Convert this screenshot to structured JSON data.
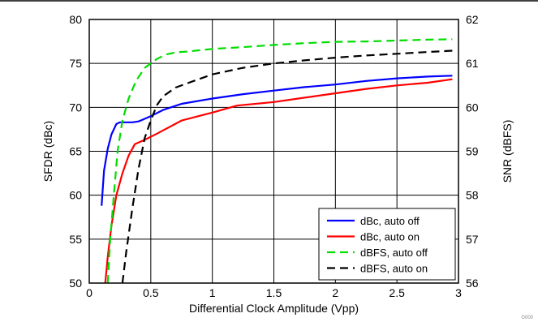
{
  "chart_data": {
    "type": "line",
    "xlabel": "Differential Clock Amplitude (Vpp)",
    "ylabel": "SFDR (dBc)",
    "y2label": "SNR (dBFS)",
    "xlim": [
      0,
      3
    ],
    "ylim": [
      50,
      80
    ],
    "y2lim": [
      56,
      62
    ],
    "x_ticks": [
      0,
      0.5,
      1,
      1.5,
      2,
      2.5,
      3
    ],
    "x_tick_labels": [
      "0",
      "0.5",
      "1",
      "1.5",
      "2",
      "2.5",
      "3"
    ],
    "y_ticks": [
      50,
      55,
      60,
      65,
      70,
      75,
      80
    ],
    "y_tick_labels": [
      "50",
      "55",
      "60",
      "65",
      "70",
      "75",
      "80"
    ],
    "y2_ticks": [
      56,
      57,
      58,
      59,
      60,
      61,
      62
    ],
    "y2_tick_labels": [
      "56",
      "57",
      "58",
      "59",
      "60",
      "61",
      "62"
    ],
    "grid": true,
    "legend_position": "bottom-right",
    "corner_note": "G000",
    "series": [
      {
        "name": "dBc, auto off",
        "axis": "left",
        "color": "#0000ff",
        "dash": "solid",
        "x": [
          0.1,
          0.12,
          0.15,
          0.18,
          0.22,
          0.25,
          0.3,
          0.35,
          0.4,
          0.5,
          0.6,
          0.75,
          1.0,
          1.25,
          1.5,
          1.75,
          2.0,
          2.25,
          2.5,
          2.75,
          2.95
        ],
        "y": [
          58.8,
          62.8,
          65.3,
          66.9,
          68.1,
          68.3,
          68.3,
          68.3,
          68.4,
          69.0,
          69.7,
          70.4,
          71.0,
          71.5,
          71.9,
          72.3,
          72.6,
          73.0,
          73.3,
          73.5,
          73.6
        ]
      },
      {
        "name": "dBc, auto on",
        "axis": "left",
        "color": "#ff0000",
        "dash": "solid",
        "x": [
          0.13,
          0.15,
          0.18,
          0.22,
          0.27,
          0.32,
          0.37,
          0.45,
          0.55,
          0.75,
          1.0,
          1.2,
          1.5,
          1.75,
          2.0,
          2.25,
          2.5,
          2.75,
          2.95
        ],
        "y": [
          50.0,
          53.0,
          56.5,
          60.0,
          62.5,
          64.5,
          65.8,
          66.3,
          67.0,
          68.5,
          69.4,
          70.2,
          70.6,
          71.1,
          71.6,
          72.1,
          72.5,
          72.8,
          73.2
        ]
      },
      {
        "name": "dBFS, auto off",
        "axis": "right",
        "color": "#00dd00",
        "dash": "dashed",
        "x": [
          0.15,
          0.17,
          0.2,
          0.23,
          0.27,
          0.32,
          0.38,
          0.45,
          0.5,
          0.55,
          0.62,
          0.7,
          0.8,
          1.0,
          1.25,
          1.5,
          1.75,
          2.0,
          2.25,
          2.5,
          2.75,
          2.95
        ],
        "y": [
          56.0,
          57.0,
          58.0,
          59.0,
          59.7,
          60.2,
          60.6,
          60.9,
          61.0,
          61.1,
          61.2,
          61.25,
          61.27,
          61.33,
          61.37,
          61.42,
          61.46,
          61.49,
          61.5,
          61.52,
          61.54,
          61.55
        ]
      },
      {
        "name": "dBFS, auto on",
        "axis": "right",
        "color": "#000000",
        "dash": "dashed",
        "x": [
          0.27,
          0.3,
          0.35,
          0.4,
          0.45,
          0.5,
          0.55,
          0.6,
          0.7,
          0.8,
          1.0,
          1.25,
          1.5,
          1.75,
          2.0,
          2.25,
          2.5,
          2.75,
          2.95
        ],
        "y": [
          56.0,
          56.7,
          57.7,
          58.6,
          59.3,
          59.7,
          60.05,
          60.25,
          60.45,
          60.55,
          60.75,
          60.9,
          61.0,
          61.07,
          61.13,
          61.18,
          61.22,
          61.26,
          61.29
        ]
      }
    ]
  }
}
